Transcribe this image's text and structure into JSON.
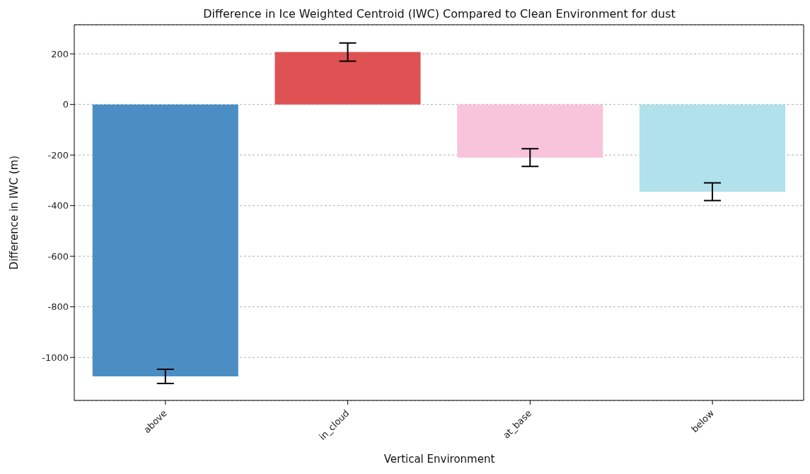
{
  "chart_data": {
    "type": "bar",
    "title": "Difference in Ice Weighted Centroid (IWC) Compared to Clean Environment for dust",
    "xlabel": "Vertical Environment",
    "ylabel": "Difference in IWC (m)",
    "categories": [
      "above",
      "in_cloud",
      "at_base",
      "below"
    ],
    "values": [
      -1075,
      207,
      -210,
      -345
    ],
    "errors": [
      28,
      36,
      35,
      35
    ],
    "colors": [
      "#4a8ec4",
      "#de5253",
      "#f8c4db",
      "#b1e1ea"
    ],
    "ylim": [
      -1170,
      315
    ],
    "yticks": [
      -1000,
      -800,
      -600,
      -400,
      -200,
      0,
      200
    ],
    "grid": "y"
  }
}
